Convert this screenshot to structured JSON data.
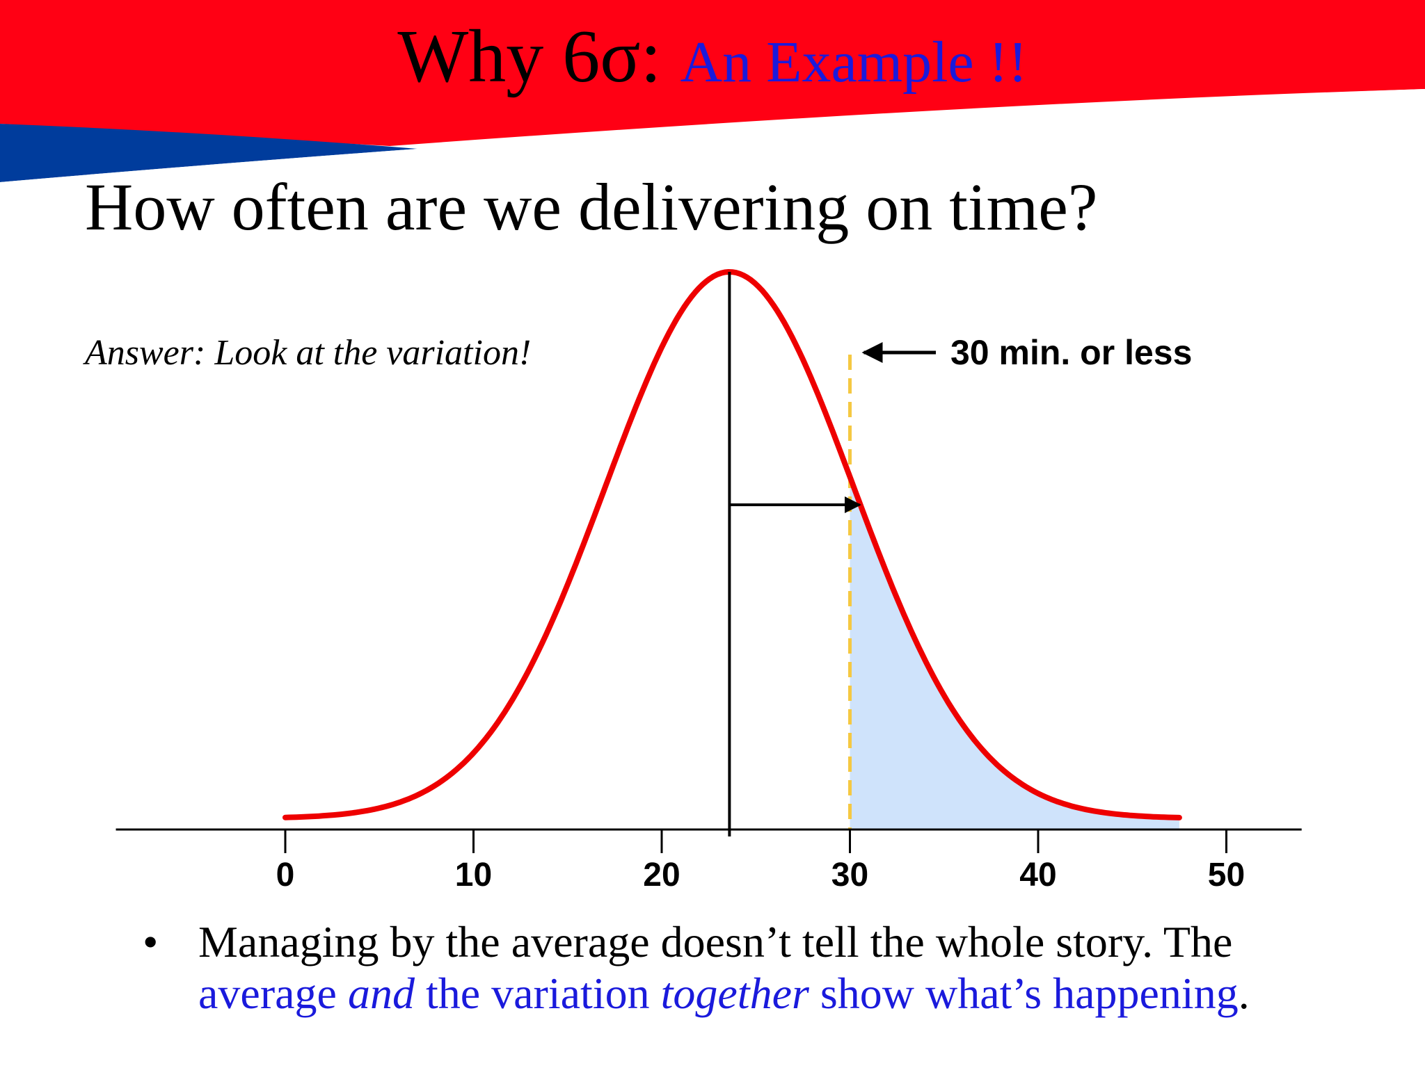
{
  "slide": {
    "title_main": "Why 6σ:",
    "title_sub": "An Example !!",
    "question": "How often are we delivering on time?",
    "answer": "Answer:  Look at the variation!",
    "bullet": {
      "line1": "Managing by the average doesn’t tell the whole story.  The",
      "line2_parts": [
        "average ",
        "and",
        " the variation ",
        "together",
        " show what’s happening",
        "."
      ]
    },
    "colors": {
      "banner_red": "#ff0014",
      "banner_blue": "#003c9c",
      "emphasis_blue": "#1a1adc",
      "curve_red": "#ee0000",
      "shade_blue": "#cfe3fb",
      "limit_yellow": "#f5c842"
    }
  },
  "chart_data": {
    "type": "area",
    "title": "",
    "xlabel": "",
    "ylabel": "",
    "x_ticks": [
      0,
      10,
      20,
      30,
      40,
      50
    ],
    "xlim": [
      -9,
      54
    ],
    "distribution": {
      "kind": "normal",
      "mean": 23.6,
      "sd": 6.6,
      "x_range": [
        0,
        47.5
      ]
    },
    "mean_marker": 23.6,
    "shaded_region": {
      "from": 30,
      "to": 47.5
    },
    "spec_limit": {
      "x": 30,
      "label": "30 min. or less"
    },
    "sigma_arrow": {
      "from": 23.6,
      "to": 30
    }
  }
}
